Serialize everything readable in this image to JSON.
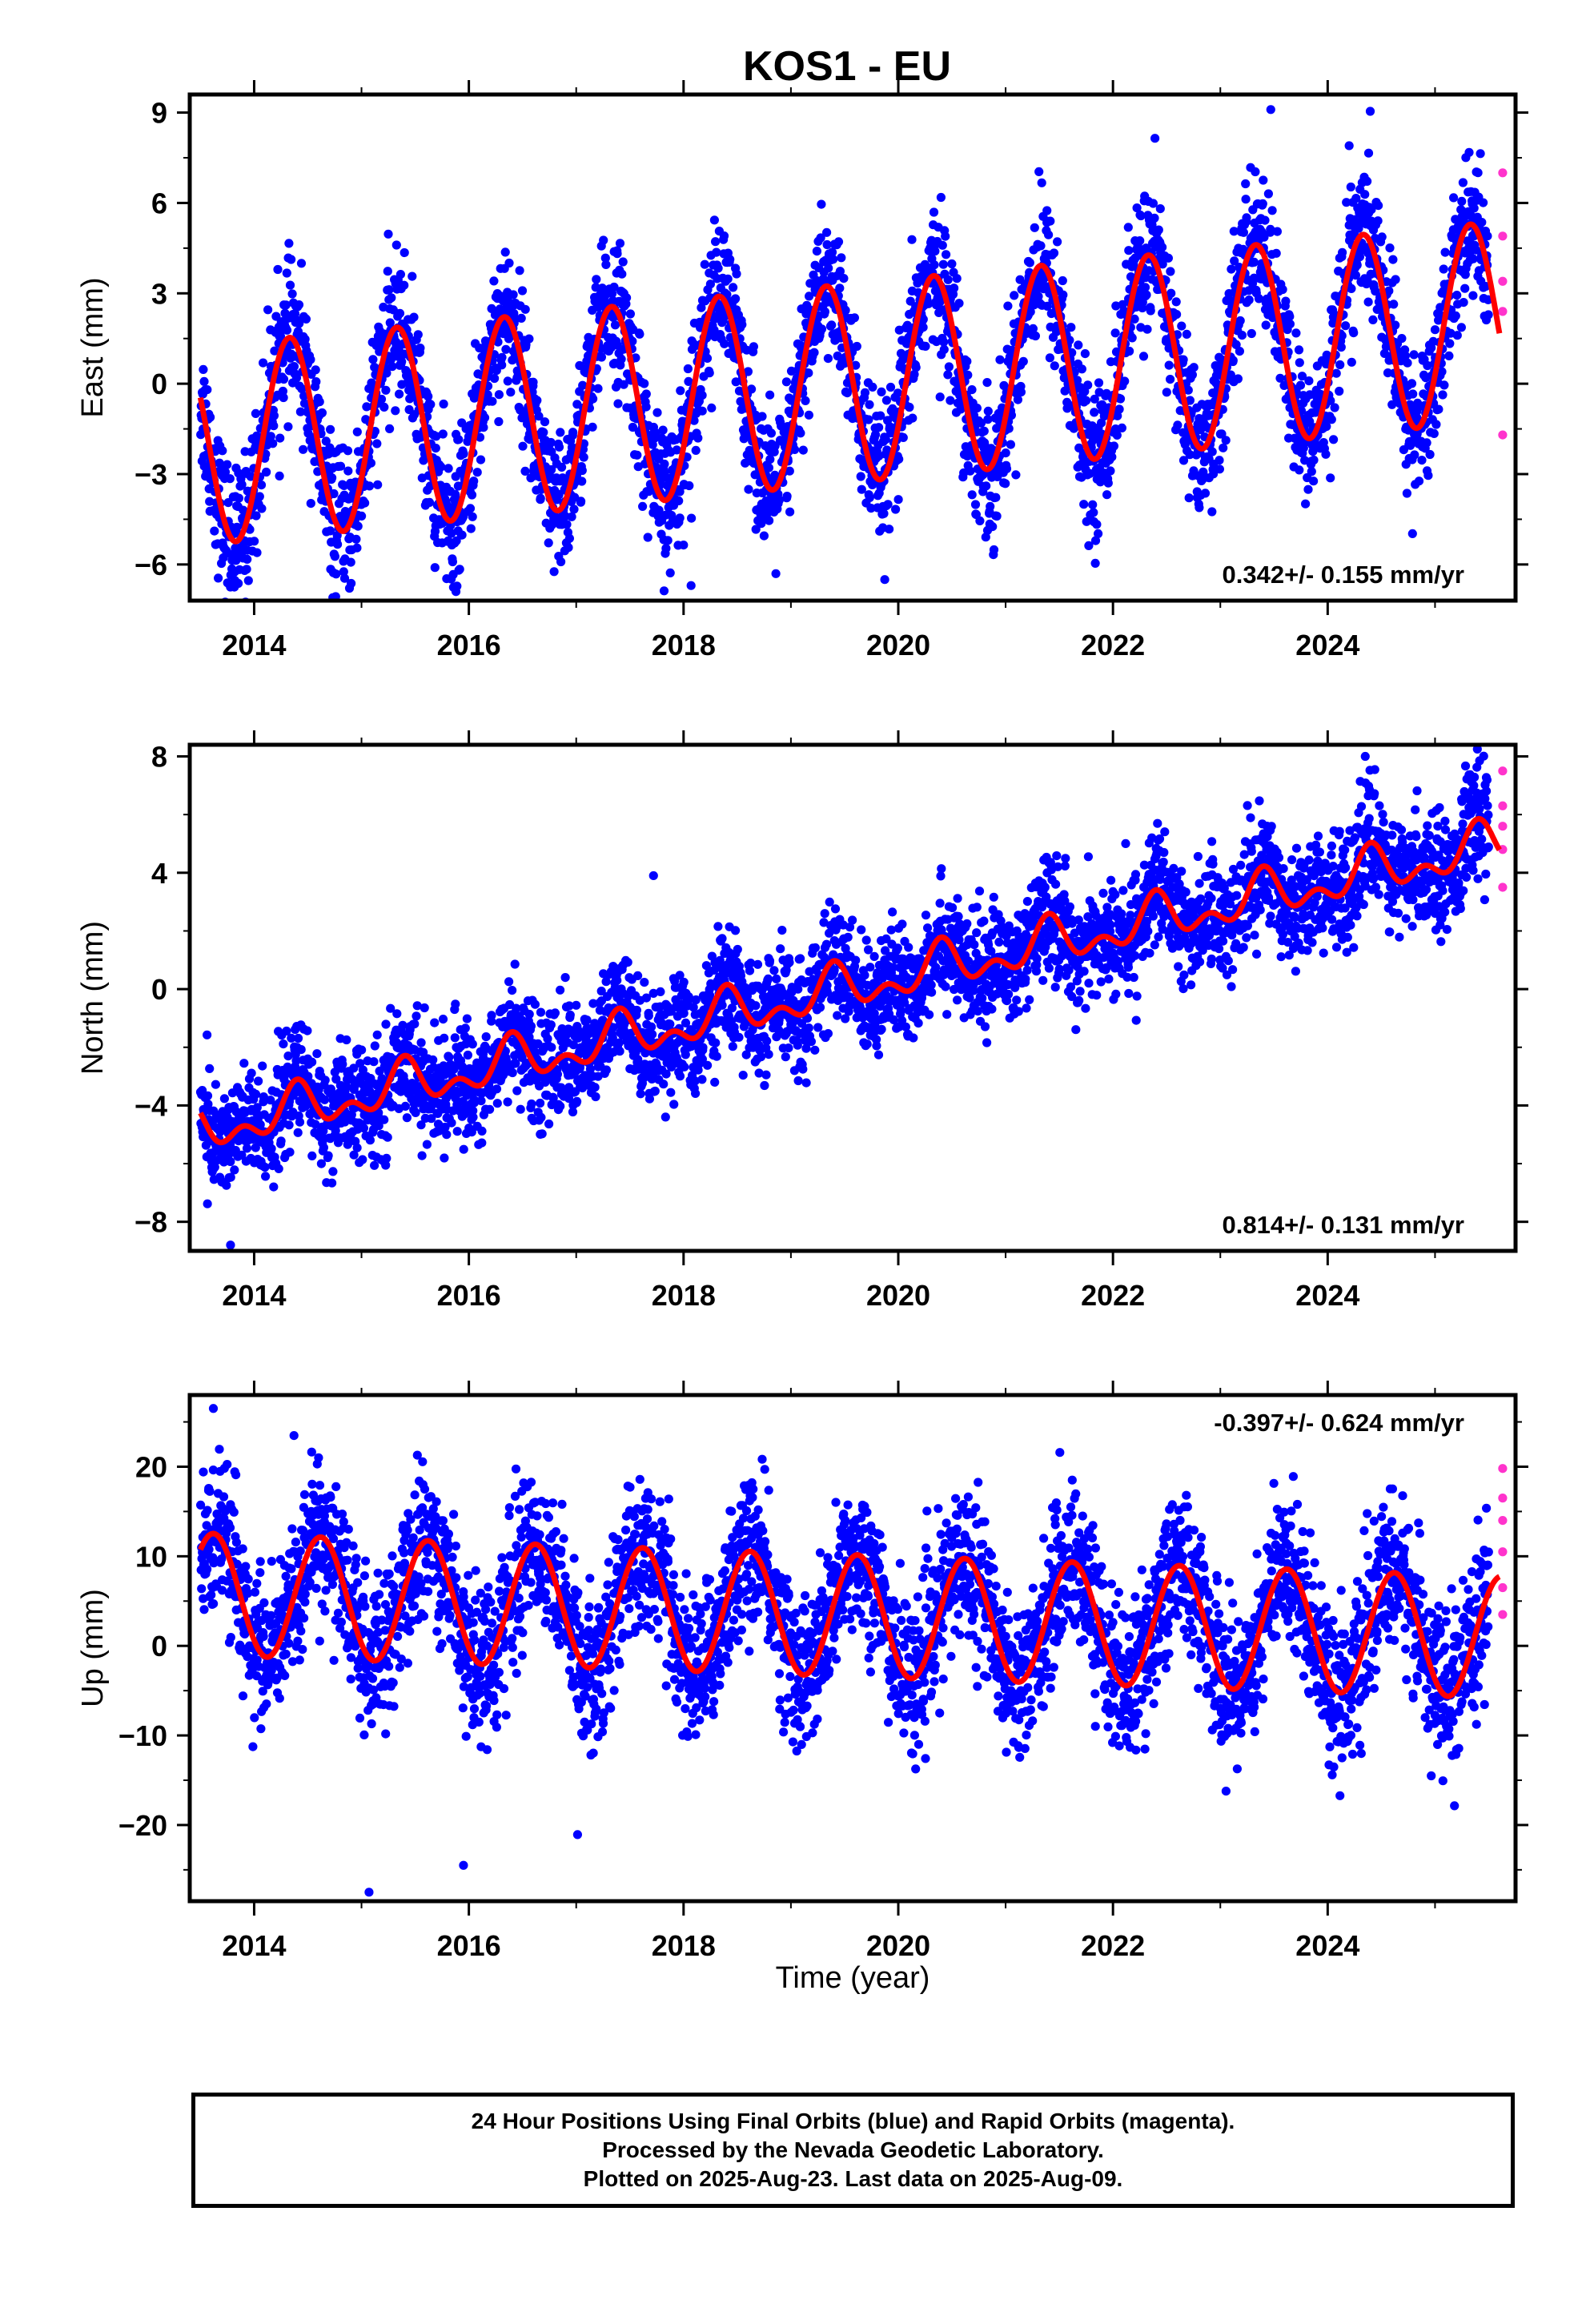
{
  "title": "KOS1 - EU",
  "colors": {
    "final_orbits": "#0000ff",
    "rapid_orbits": "#ff33cc",
    "model": "#ff0000",
    "frame": "#000000"
  },
  "chart_data": [
    {
      "type": "scatter",
      "name": "east",
      "ylabel": "East (mm)",
      "xlabel": "",
      "xlim": [
        2013.4,
        2025.75
      ],
      "ylim": [
        -7.2,
        9.6
      ],
      "yticks": [
        -6,
        -3,
        0,
        3,
        6,
        9
      ],
      "ytick_labels": [
        "−6",
        "−3",
        "0",
        "3",
        "6",
        "9"
      ],
      "xticks": [
        2014,
        2016,
        2018,
        2020,
        2022,
        2024
      ],
      "xtick_labels": [
        "2014",
        "2016",
        "2018",
        "2020",
        "2022",
        "2024"
      ],
      "rate_label": "0.342+/- 0.155 mm/yr",
      "rate_position": "bottom-right",
      "model": {
        "offset": 0.0,
        "slope": 0.342,
        "annual_amp": 3.3,
        "peak_phase": 0.33,
        "semi_amp": 0.0,
        "ref_year": 2019.5
      },
      "spread": 1.15,
      "x_range": [
        2013.5,
        2025.5
      ],
      "outliers": [
        [
          2023.47,
          9.1
        ],
        [
          2024.2,
          7.9
        ],
        [
          2015.88,
          -6.9
        ],
        [
          2018.07,
          -6.7
        ]
      ],
      "rapid_points": [
        [
          2025.63,
          7.0
        ],
        [
          2025.63,
          4.9
        ],
        [
          2025.63,
          3.4
        ],
        [
          2025.63,
          2.4
        ],
        [
          2025.63,
          -1.7
        ]
      ]
    },
    {
      "type": "scatter",
      "name": "north",
      "ylabel": "North (mm)",
      "xlabel": "",
      "xlim": [
        2013.4,
        2025.75
      ],
      "ylim": [
        -9.0,
        8.4
      ],
      "yticks": [
        -8,
        -4,
        0,
        4,
        8
      ],
      "ytick_labels": [
        "−8",
        "−4",
        "0",
        "4",
        "8"
      ],
      "xticks": [
        2014,
        2016,
        2018,
        2020,
        2022,
        2024
      ],
      "xtick_labels": [
        "2014",
        "2016",
        "2018",
        "2020",
        "2022",
        "2024"
      ],
      "rate_label": "0.814+/- 0.131 mm/yr",
      "rate_position": "bottom-right",
      "model": {
        "offset": 0.0,
        "slope": 0.814,
        "annual_amp": 0.6,
        "peak_phase": 0.4,
        "semi_amp": 0.45,
        "ref_year": 2019.5
      },
      "spread": 0.95,
      "x_range": [
        2013.5,
        2025.5
      ],
      "outliers": [
        [
          2024.35,
          8.0
        ],
        [
          2017.72,
          3.9
        ],
        [
          2013.78,
          -8.8
        ]
      ],
      "rapid_points": [
        [
          2025.63,
          7.5
        ],
        [
          2025.63,
          6.3
        ],
        [
          2025.63,
          5.6
        ],
        [
          2025.63,
          4.8
        ],
        [
          2025.63,
          3.5
        ]
      ]
    },
    {
      "type": "scatter",
      "name": "up",
      "ylabel": "Up (mm)",
      "xlabel": "Time (year)",
      "xlim": [
        2013.4,
        2025.75
      ],
      "ylim": [
        -28.5,
        28
      ],
      "yticks": [
        -20,
        -10,
        0,
        10,
        20
      ],
      "ytick_labels": [
        "−20",
        "−10",
        "0",
        "10",
        "20"
      ],
      "xticks": [
        2014,
        2016,
        2018,
        2020,
        2022,
        2024
      ],
      "xtick_labels": [
        "2014",
        "2016",
        "2018",
        "2020",
        "2022",
        "2024"
      ],
      "rate_label": "-0.397+/- 0.624 mm/yr",
      "rate_position": "top-right",
      "model": {
        "offset": 3.4,
        "slope": -0.397,
        "annual_amp": 6.8,
        "peak_phase": 0.62,
        "semi_amp": 0.0,
        "ref_year": 2019.5
      },
      "spread": 4.2,
      "x_range": [
        2013.5,
        2025.5
      ],
      "outliers": [
        [
          2013.62,
          26.5
        ],
        [
          2015.07,
          -27.5
        ],
        [
          2015.95,
          -24.5
        ],
        [
          2014.6,
          21.0
        ]
      ],
      "rapid_points": [
        [
          2025.63,
          19.8
        ],
        [
          2025.63,
          16.5
        ],
        [
          2025.63,
          14.0
        ],
        [
          2025.63,
          10.5
        ],
        [
          2025.63,
          6.5
        ],
        [
          2025.63,
          3.5
        ]
      ]
    }
  ],
  "footer": {
    "line1": "24 Hour Positions Using Final Orbits (blue) and Rapid Orbits (magenta).",
    "line2": "Processed by the Nevada Geodetic Laboratory.",
    "line3": "Plotted on 2025-Aug-23. Last data on 2025-Aug-09."
  }
}
